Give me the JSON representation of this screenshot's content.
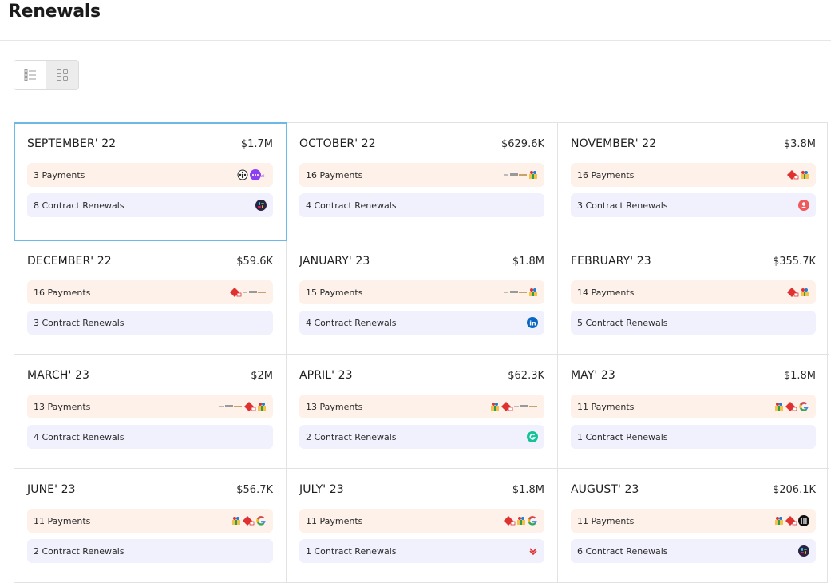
{
  "page": {
    "title": "Renewals"
  },
  "view_toggle": {
    "list_icon": "list-view-icon",
    "grid_icon": "grid-view-icon",
    "active": "grid"
  },
  "months": [
    {
      "month": "SEPTEMBER' 22",
      "amount": "$1.7M",
      "payments": "3 Payments",
      "renewals": "8 Contract Renewals",
      "payment_logos": [
        "dots-logo",
        "chat-bubble-logo"
      ],
      "renewal_logos": [
        "slack-logo"
      ],
      "selected": true
    },
    {
      "month": "OCTOBER' 22",
      "amount": "$629.6K",
      "payments": "16 Payments",
      "renewals": "4 Contract Renewals",
      "payment_logos": [
        "wordmark-logo",
        "gift-logo"
      ],
      "renewal_logos": []
    },
    {
      "month": "NOVEMBER' 22",
      "amount": "$3.8M",
      "payments": "16 Payments",
      "renewals": "3 Contract Renewals",
      "payment_logos": [
        "diamond-logo",
        "gift-logo"
      ],
      "renewal_logos": [
        "user-circle-logo"
      ]
    },
    {
      "month": "DECEMBER' 22",
      "amount": "$59.6K",
      "payments": "16 Payments",
      "renewals": "3 Contract Renewals",
      "payment_logos": [
        "diamond-logo",
        "wordmark-logo"
      ],
      "renewal_logos": []
    },
    {
      "month": "JANUARY' 23",
      "amount": "$1.8M",
      "payments": "15 Payments",
      "renewals": "4 Contract Renewals",
      "payment_logos": [
        "wordmark-logo",
        "gift-logo"
      ],
      "renewal_logos": [
        "linkedin-logo"
      ]
    },
    {
      "month": "FEBRUARY' 23",
      "amount": "$355.7K",
      "payments": "14 Payments",
      "renewals": "5 Contract Renewals",
      "payment_logos": [
        "diamond-logo",
        "gift-logo"
      ],
      "renewal_logos": []
    },
    {
      "month": "MARCH' 23",
      "amount": "$2M",
      "payments": "13 Payments",
      "renewals": "4 Contract Renewals",
      "payment_logos": [
        "wordmark-logo",
        "diamond-logo",
        "gift-logo"
      ],
      "renewal_logos": []
    },
    {
      "month": "APRIL' 23",
      "amount": "$62.3K",
      "payments": "13 Payments",
      "renewals": "2 Contract Renewals",
      "payment_logos": [
        "gift-logo",
        "diamond-logo",
        "wordmark-logo"
      ],
      "renewal_logos": [
        "grammarly-logo"
      ]
    },
    {
      "month": "MAY' 23",
      "amount": "$1.8M",
      "payments": "11 Payments",
      "renewals": "1 Contract Renewals",
      "payment_logos": [
        "gift-logo",
        "diamond-logo",
        "google-logo"
      ],
      "renewal_logos": []
    },
    {
      "month": "JUNE' 23",
      "amount": "$56.7K",
      "payments": "11 Payments",
      "renewals": "2 Contract Renewals",
      "payment_logos": [
        "gift-logo",
        "diamond-logo",
        "google-logo"
      ],
      "renewal_logos": []
    },
    {
      "month": "JULY' 23",
      "amount": "$1.8M",
      "payments": "11 Payments",
      "renewals": "1 Contract Renewals",
      "payment_logos": [
        "diamond-logo",
        "gift-logo",
        "google-logo"
      ],
      "renewal_logos": [
        "chevron-logo"
      ]
    },
    {
      "month": "AUGUST' 23",
      "amount": "$206.1K",
      "payments": "11 Payments",
      "renewals": "6 Contract Renewals",
      "payment_logos": [
        "gift-logo",
        "diamond-logo",
        "stripe-circle-logo"
      ],
      "renewal_logos": [
        "slack-logo"
      ]
    }
  ],
  "colors": {
    "payments_bg": "#fdf1ea",
    "renewals_bg": "#f1f0fd",
    "selected_border": "#6cb8e6"
  }
}
